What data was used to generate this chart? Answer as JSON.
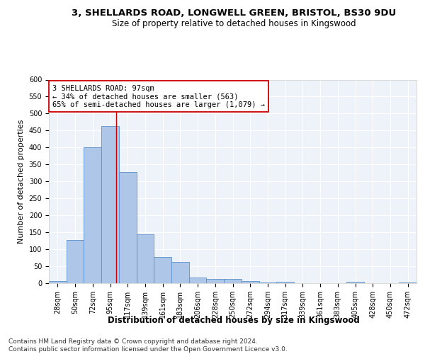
{
  "title1": "3, SHELLARDS ROAD, LONGWELL GREEN, BRISTOL, BS30 9DU",
  "title2": "Size of property relative to detached houses in Kingswood",
  "xlabel": "Distribution of detached houses by size in Kingswood",
  "ylabel": "Number of detached properties",
  "bar_labels": [
    "28sqm",
    "50sqm",
    "72sqm",
    "95sqm",
    "117sqm",
    "139sqm",
    "161sqm",
    "183sqm",
    "206sqm",
    "228sqm",
    "250sqm",
    "272sqm",
    "294sqm",
    "317sqm",
    "339sqm",
    "361sqm",
    "383sqm",
    "405sqm",
    "428sqm",
    "450sqm",
    "472sqm"
  ],
  "bar_values": [
    7,
    127,
    400,
    463,
    327,
    143,
    78,
    63,
    17,
    12,
    13,
    6,
    2,
    4,
    0,
    0,
    0,
    4,
    0,
    0,
    3
  ],
  "bar_color": "#aec6e8",
  "bar_edge_color": "#5b8fc9",
  "vline_x": 3.34,
  "vline_color": "#cc0000",
  "annotation_text": "3 SHELLARDS ROAD: 97sqm\n← 34% of detached houses are smaller (563)\n65% of semi-detached houses are larger (1,079) →",
  "annotation_box_color": "#ffffff",
  "annotation_box_edge": "#cc0000",
  "ylim": [
    0,
    600
  ],
  "yticks": [
    0,
    50,
    100,
    150,
    200,
    250,
    300,
    350,
    400,
    450,
    500,
    550,
    600
  ],
  "background_color": "#eef2f9",
  "grid_color": "#ffffff",
  "footer": "Contains HM Land Registry data © Crown copyright and database right 2024.\nContains public sector information licensed under the Open Government Licence v3.0.",
  "title1_fontsize": 9.5,
  "title2_fontsize": 8.5,
  "xlabel_fontsize": 8.5,
  "ylabel_fontsize": 8,
  "footer_fontsize": 6.5,
  "tick_fontsize": 7,
  "ann_fontsize": 7.5
}
